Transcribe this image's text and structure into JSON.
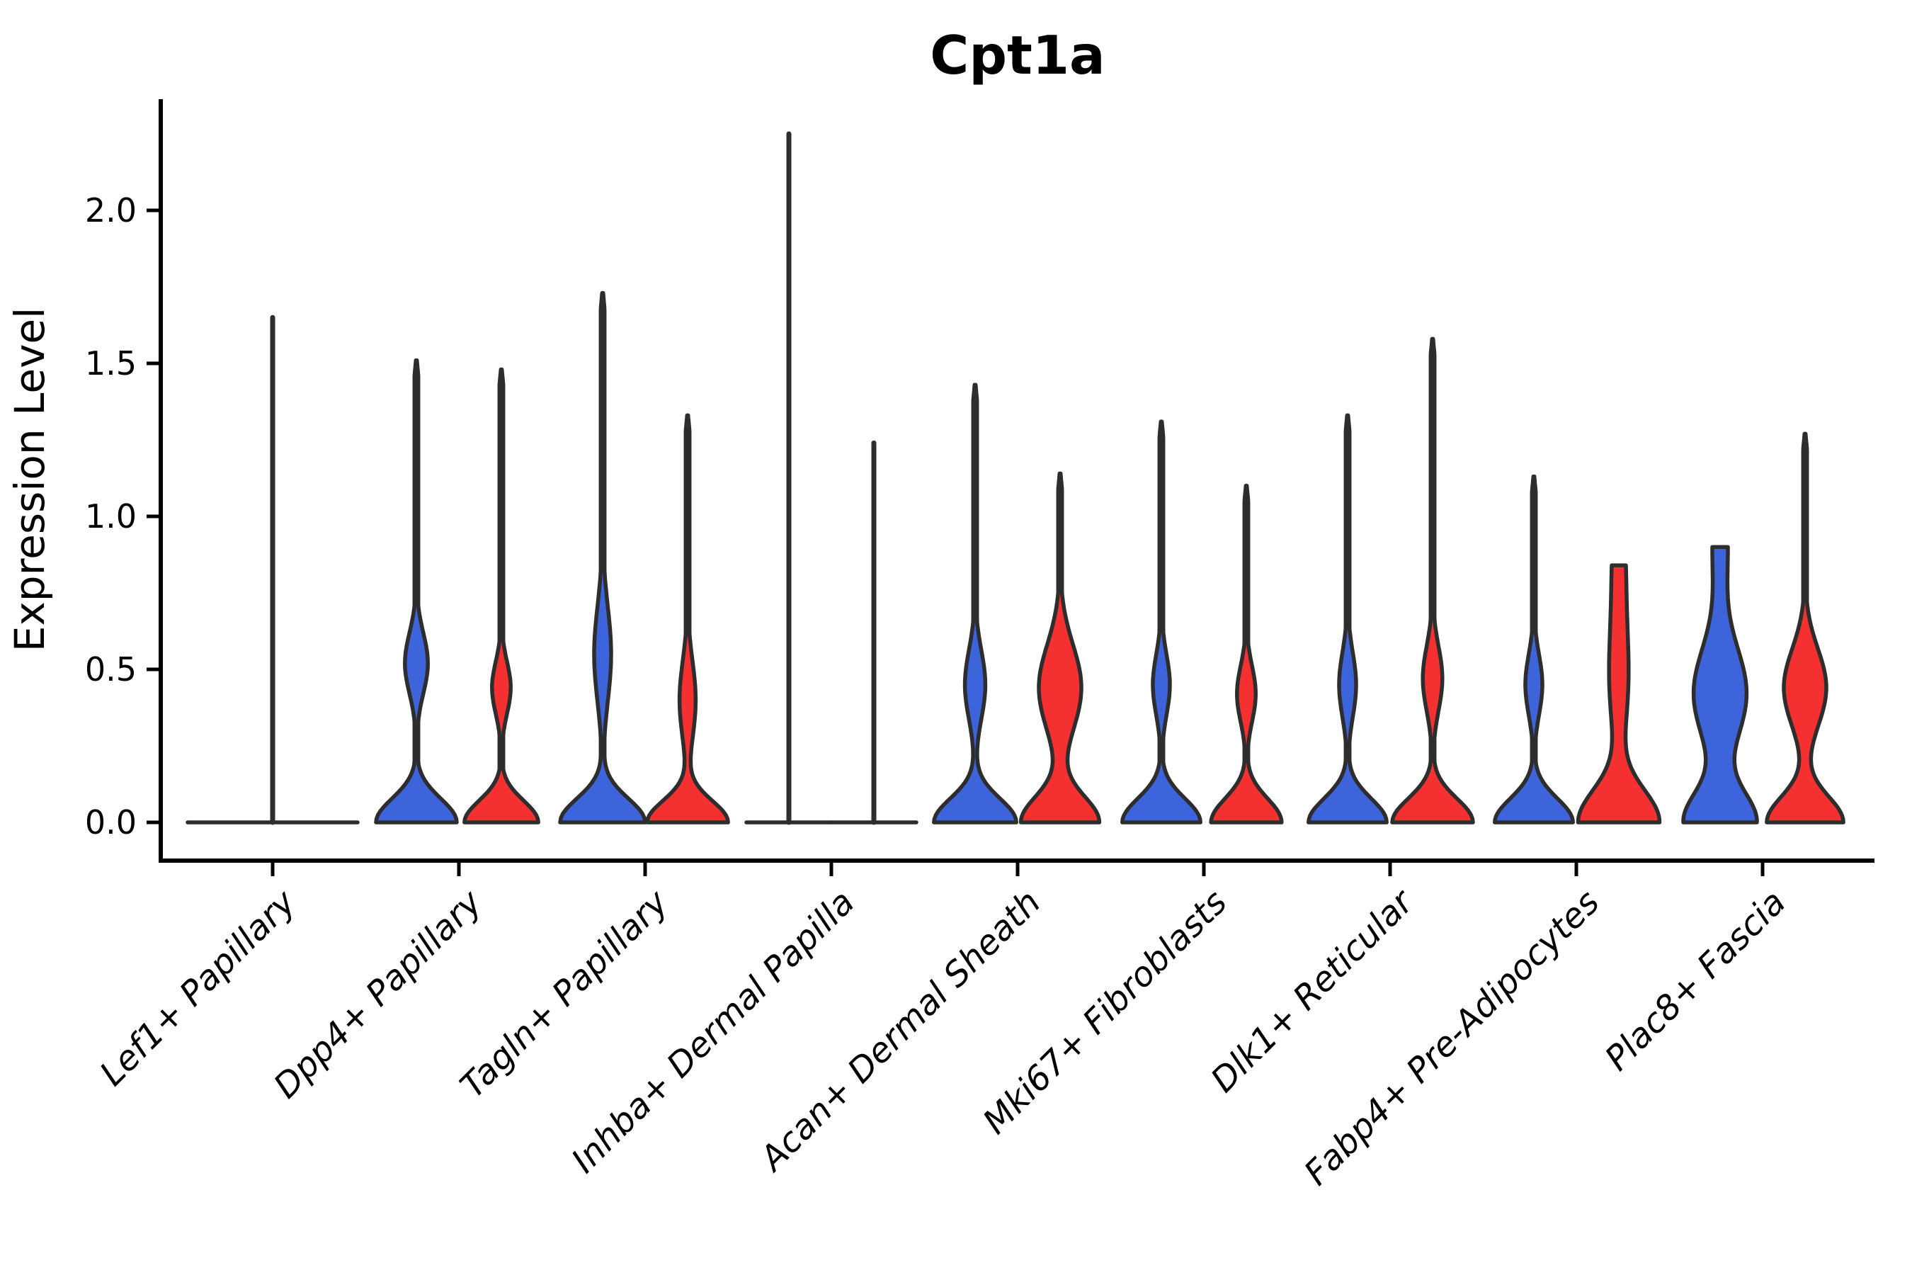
{
  "title": "Cpt1a",
  "y_axis": {
    "label": "Expression Level",
    "tick_labels": [
      "0.0",
      "0.5",
      "1.0",
      "1.5",
      "2.0"
    ]
  },
  "x_axis": {
    "tick_labels": [
      "Lef1+ Papillary",
      "Dpp4+ Papillary",
      "Tagln+ Papillary",
      "Inhba+ Dermal Papilla",
      "Acan+ Dermal Sheath",
      "Mki67+ Fibroblasts",
      "Dlk1+ Reticular",
      "Fabp4+ Pre-Adipocytes",
      "Plac8+ Fascia"
    ]
  },
  "colors": {
    "violin_blue": "#3E64DC",
    "violin_red": "#F43030",
    "violin_outline": "#2d2d2d",
    "axis": "#000000",
    "background": "#ffffff"
  },
  "chart_data": {
    "type": "violin",
    "title": "Cpt1a",
    "xlabel": "",
    "ylabel": "Expression Level",
    "ylim": [
      -0.124,
      2.364
    ],
    "yticks": [
      0.0,
      0.5,
      1.0,
      1.5,
      2.0
    ],
    "ytick_labels": [
      "0.0",
      "0.5",
      "1.0",
      "1.5",
      "2.0"
    ],
    "grid": false,
    "legend": "none",
    "series_names": [
      "blue",
      "red"
    ],
    "series_colors": {
      "blue": "#3E64DC",
      "red": "#F43030"
    },
    "categories": [
      "Lef1+ Papillary",
      "Dpp4+ Papillary",
      "Tagln+ Papillary",
      "Inhba+ Dermal Papilla",
      "Acan+ Dermal Sheath",
      "Mki67+ Fibroblasts",
      "Dlk1+ Reticular",
      "Fabp4+ Pre-Adipocytes",
      "Plac8+ Fascia"
    ],
    "groups": [
      {
        "category": "Lef1+ Papillary",
        "center_spike_max": 1.65,
        "blue": {
          "t": "flat",
          "max": 0
        },
        "red": {
          "t": "flat",
          "max": 0
        }
      },
      {
        "category": "Dpp4+ Papillary",
        "blue": {
          "t": "violin",
          "max": 1.51,
          "base": {
            "a": 0.95,
            "s": 0.11
          },
          "bulges": [
            {
              "c": 0.52,
              "a": 0.27,
              "s": 0.14
            }
          ],
          "flat_top": false
        },
        "red": {
          "t": "violin",
          "max": 1.48,
          "base": {
            "a": 0.87,
            "s": 0.1
          },
          "bulges": [
            {
              "c": 0.44,
              "a": 0.22,
              "s": 0.12
            }
          ],
          "flat_top": false
        }
      },
      {
        "category": "Tagln+ Papillary",
        "blue": {
          "t": "violin",
          "max": 1.73,
          "base": {
            "a": 1.0,
            "s": 0.11
          },
          "bulges": [
            {
              "c": 0.55,
              "a": 0.2,
              "s": 0.22
            }
          ],
          "flat_top": false
        },
        "red": {
          "t": "violin",
          "max": 1.33,
          "base": {
            "a": 0.95,
            "s": 0.1
          },
          "bulges": [
            {
              "c": 0.4,
              "a": 0.19,
              "s": 0.18
            }
          ],
          "flat_top": false
        }
      },
      {
        "category": "Inhba+ Dermal Papilla",
        "blue": {
          "t": "spike",
          "max": 2.25
        },
        "red": {
          "t": "spike",
          "max": 1.24
        }
      },
      {
        "category": "Acan+ Dermal Sheath",
        "blue": {
          "t": "violin",
          "max": 1.43,
          "base": {
            "a": 0.97,
            "s": 0.11
          },
          "bulges": [
            {
              "c": 0.45,
              "a": 0.24,
              "s": 0.16
            }
          ],
          "flat_top": false
        },
        "red": {
          "t": "violin",
          "max": 1.14,
          "base": {
            "a": 0.92,
            "s": 0.12
          },
          "bulges": [
            {
              "c": 0.44,
              "a": 0.5,
              "s": 0.2
            }
          ],
          "flat_top": false
        }
      },
      {
        "category": "Mki67+ Fibroblasts",
        "blue": {
          "t": "violin",
          "max": 1.31,
          "base": {
            "a": 0.92,
            "s": 0.11
          },
          "bulges": [
            {
              "c": 0.45,
              "a": 0.2,
              "s": 0.14
            }
          ],
          "flat_top": false
        },
        "red": {
          "t": "violin",
          "max": 1.1,
          "base": {
            "a": 0.83,
            "s": 0.11
          },
          "bulges": [
            {
              "c": 0.42,
              "a": 0.22,
              "s": 0.13
            }
          ],
          "flat_top": false
        }
      },
      {
        "category": "Dlk1+ Reticular",
        "blue": {
          "t": "violin",
          "max": 1.33,
          "base": {
            "a": 0.92,
            "s": 0.11
          },
          "bulges": [
            {
              "c": 0.45,
              "a": 0.2,
              "s": 0.15
            }
          ],
          "flat_top": false
        },
        "red": {
          "t": "violin",
          "max": 1.58,
          "base": {
            "a": 0.95,
            "s": 0.11
          },
          "bulges": [
            {
              "c": 0.47,
              "a": 0.23,
              "s": 0.15
            }
          ],
          "flat_top": false
        }
      },
      {
        "category": "Fabp4+ Pre-Adipocytes",
        "blue": {
          "t": "violin",
          "max": 1.13,
          "base": {
            "a": 0.92,
            "s": 0.11
          },
          "bulges": [
            {
              "c": 0.45,
              "a": 0.2,
              "s": 0.14
            }
          ],
          "flat_top": false
        },
        "red": {
          "t": "violin",
          "max": 0.84,
          "base": {
            "a": 0.95,
            "s": 0.15
          },
          "bulges": [
            {
              "c": 0.45,
              "a": 0.2,
              "s": 0.25
            },
            {
              "c": 0.85,
              "a": 0.15,
              "s": 0.3
            }
          ],
          "flat_top": true
        }
      },
      {
        "category": "Plac8+ Fascia",
        "blue": {
          "t": "violin",
          "max": 0.9,
          "base": {
            "a": 0.85,
            "s": 0.14
          },
          "bulges": [
            {
              "c": 0.42,
              "a": 0.62,
              "s": 0.22
            },
            {
              "c": 0.92,
              "a": 0.18,
              "s": 0.25
            }
          ],
          "flat_top": true
        },
        "red": {
          "t": "violin",
          "max": 1.27,
          "base": {
            "a": 0.9,
            "s": 0.12
          },
          "bulges": [
            {
              "c": 0.44,
              "a": 0.5,
              "s": 0.18
            }
          ],
          "flat_top": false
        }
      }
    ]
  }
}
